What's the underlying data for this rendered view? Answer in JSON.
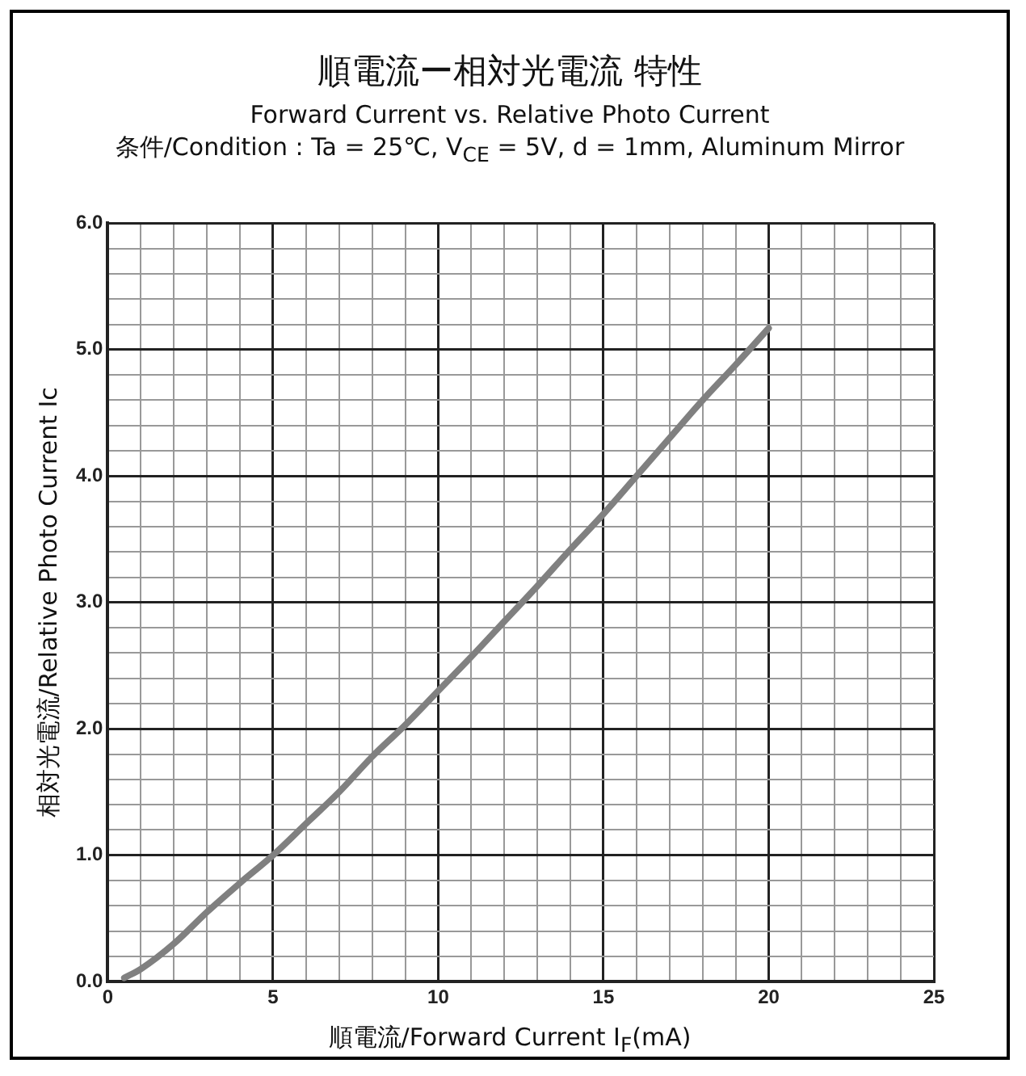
{
  "chart_data": {
    "type": "line",
    "title": "順電流ー相対光電流 特性",
    "subtitle": "Forward Current vs. Relative Photo Current",
    "annotations": [
      "条件/Condition : Ta = 25℃, V$_{CE}$ = 5V, d = 1mm, Aluminum Mirror"
    ],
    "xlabel": "順電流/Forward Current I$_{F}$(mA)",
    "ylabel": "相対光電流/Relative Photo Current Ic",
    "series": [
      {
        "color": "#808080",
        "x": [
          0.5,
          1,
          2,
          3,
          4,
          5,
          6,
          7,
          8,
          9,
          10,
          11,
          12,
          13,
          14,
          15,
          16,
          17,
          18,
          19,
          20
        ],
        "values": [
          0.03,
          0.1,
          0.3,
          0.55,
          0.78,
          1.0,
          1.25,
          1.5,
          1.78,
          2.03,
          2.3,
          2.57,
          2.85,
          3.13,
          3.42,
          3.7,
          4.0,
          4.3,
          4.6,
          4.88,
          5.17
        ]
      }
    ],
    "xlim": [
      0,
      25
    ],
    "ylim": [
      0,
      6
    ],
    "xticks": [
      0,
      {
        "value": 1,
        "label": null
      },
      {
        "value": 2,
        "label": null
      },
      {
        "value": 3,
        "label": null
      },
      {
        "value": 4,
        "label": null
      },
      5,
      {
        "value": 6,
        "label": null
      },
      {
        "value": 7,
        "label": null
      },
      {
        "value": 8,
        "label": null
      },
      {
        "value": 9,
        "label": null
      },
      10,
      {
        "value": 11,
        "label": null
      },
      {
        "value": 12,
        "label": null
      },
      {
        "value": 13,
        "label": null
      },
      {
        "value": 14,
        "label": null
      },
      15,
      {
        "value": 16,
        "label": null
      },
      {
        "value": 17,
        "label": null
      },
      {
        "value": 18,
        "label": null
      },
      {
        "value": 19,
        "label": null
      },
      20,
      {
        "value": 21,
        "label": null
      },
      {
        "value": 22,
        "label": null
      },
      {
        "value": 23,
        "label": null
      },
      {
        "value": 24,
        "label": null
      },
      25
    ],
    "yticks": [
      {
        "value": 0,
        "label": "0.0"
      },
      {
        "value": 0.2,
        "label": null
      },
      {
        "value": 0.4,
        "label": null
      },
      {
        "value": 0.6,
        "label": null
      },
      {
        "value": 0.8,
        "label": null
      },
      {
        "value": 1,
        "label": "1.0"
      },
      {
        "value": 1.2,
        "label": null
      },
      {
        "value": 1.4,
        "label": null
      },
      {
        "value": 1.6,
        "label": null
      },
      {
        "value": 1.8,
        "label": null
      },
      {
        "value": 2,
        "label": "2.0"
      },
      {
        "value": 2.2,
        "label": null
      },
      {
        "value": 2.4,
        "label": null
      },
      {
        "value": 2.6,
        "label": null
      },
      {
        "value": 2.8,
        "label": null
      },
      {
        "value": 3,
        "label": "3.0"
      },
      {
        "value": 3.2,
        "label": null
      },
      {
        "value": 3.4,
        "label": null
      },
      {
        "value": 3.6,
        "label": null
      },
      {
        "value": 3.8,
        "label": null
      },
      {
        "value": 4,
        "label": "4.0"
      },
      {
        "value": 4.2,
        "label": null
      },
      {
        "value": 4.4,
        "label": null
      },
      {
        "value": 4.6,
        "label": null
      },
      {
        "value": 4.8,
        "label": null
      },
      {
        "value": 5,
        "label": "5.0"
      },
      {
        "value": 5.2,
        "label": null
      },
      {
        "value": 5.4,
        "label": null
      },
      {
        "value": 5.6,
        "label": null
      },
      {
        "value": 5.8,
        "label": null
      },
      {
        "value": 6,
        "label": "6.0"
      }
    ],
    "grid": true,
    "legend": false,
    "marker": "none",
    "line_style": "solid"
  }
}
